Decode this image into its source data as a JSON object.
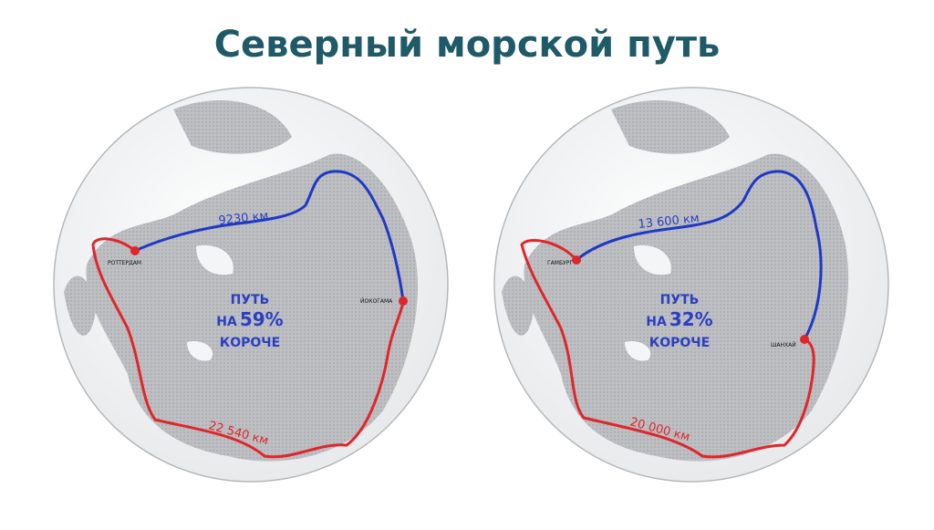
{
  "header": {
    "title": "Северный морской путь"
  },
  "maps": [
    {
      "north_route_label": "9230 км",
      "south_route_label": "22 540 км",
      "origin": "РОТТЕРДАМ",
      "destination": "ЙОКОГАМА",
      "caption": {
        "line1": "ПУТЬ",
        "prefix": "НА",
        "percent": "59%",
        "line3": "КОРОЧЕ"
      }
    },
    {
      "north_route_label": "13 600 км",
      "south_route_label": "20 000 км",
      "origin": "ГАМБУРГ",
      "destination": "ШАНХАЙ",
      "caption": {
        "line1": "ПУТЬ",
        "prefix": "НА",
        "percent": "32%",
        "line3": "КОРОЧЕ"
      }
    }
  ]
}
